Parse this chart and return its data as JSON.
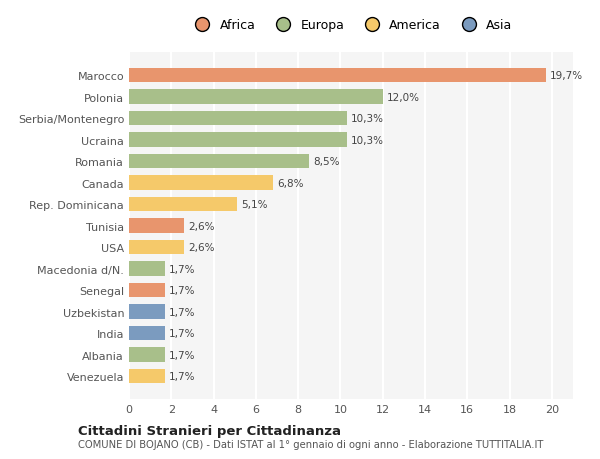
{
  "categories": [
    "Venezuela",
    "Albania",
    "India",
    "Uzbekistan",
    "Senegal",
    "Macedonia d/N.",
    "USA",
    "Tunisia",
    "Rep. Dominicana",
    "Canada",
    "Romania",
    "Ucraina",
    "Serbia/Montenegro",
    "Polonia",
    "Marocco"
  ],
  "values": [
    1.7,
    1.7,
    1.7,
    1.7,
    1.7,
    1.7,
    2.6,
    2.6,
    5.1,
    6.8,
    8.5,
    10.3,
    10.3,
    12.0,
    19.7
  ],
  "colors": [
    "#f5c96a",
    "#a8bf8a",
    "#7b9bbf",
    "#7b9bbf",
    "#e8956d",
    "#a8bf8a",
    "#f5c96a",
    "#e8956d",
    "#f5c96a",
    "#f5c96a",
    "#a8bf8a",
    "#a8bf8a",
    "#a8bf8a",
    "#a8bf8a",
    "#e8956d"
  ],
  "labels": [
    "1,7%",
    "1,7%",
    "1,7%",
    "1,7%",
    "1,7%",
    "1,7%",
    "2,6%",
    "2,6%",
    "5,1%",
    "6,8%",
    "8,5%",
    "10,3%",
    "10,3%",
    "12,0%",
    "19,7%"
  ],
  "legend": [
    {
      "label": "Africa",
      "color": "#e8956d"
    },
    {
      "label": "Europa",
      "color": "#a8bf8a"
    },
    {
      "label": "America",
      "color": "#f5c96a"
    },
    {
      "label": "Asia",
      "color": "#7b9bbf"
    }
  ],
  "title": "Cittadini Stranieri per Cittadinanza",
  "subtitle": "COMUNE DI BOJANO (CB) - Dati ISTAT al 1° gennaio di ogni anno - Elaborazione TUTTITALIA.IT",
  "xlim": [
    0,
    21
  ],
  "xticks": [
    0,
    2,
    4,
    6,
    8,
    10,
    12,
    14,
    16,
    18,
    20
  ],
  "background_color": "#ffffff",
  "plot_bg_color": "#f5f5f5",
  "grid_color": "#ffffff"
}
